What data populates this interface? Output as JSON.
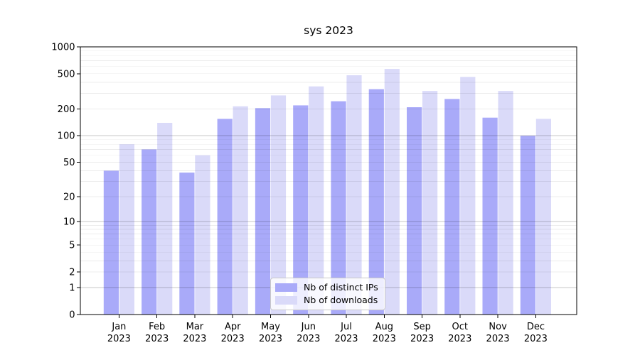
{
  "title": "sys 2023",
  "chart_data": {
    "type": "bar",
    "title": "sys 2023",
    "xlabel": "",
    "ylabel": "",
    "categories": [
      "Jan",
      "Feb",
      "Mar",
      "Apr",
      "May",
      "Jun",
      "Jul",
      "Aug",
      "Sep",
      "Oct",
      "Nov",
      "Dec"
    ],
    "year_label": "2023",
    "series": [
      {
        "name": "Nb of distinct IPs",
        "color": "#a9aaf9",
        "values": [
          40,
          70,
          38,
          155,
          205,
          220,
          245,
          335,
          210,
          260,
          160,
          100
        ]
      },
      {
        "name": "Nb of downloads",
        "color": "#dadaf9",
        "values": [
          80,
          140,
          60,
          215,
          285,
          360,
          480,
          565,
          320,
          460,
          320,
          155
        ]
      }
    ],
    "y_axis": {
      "scale": "log(1+v)",
      "range": [
        0,
        1000
      ],
      "ticks": [
        0,
        1,
        2,
        5,
        10,
        20,
        50,
        100,
        200,
        500,
        1000
      ],
      "major_gridlines": [
        1,
        10,
        100,
        1000
      ],
      "minor_gridlines_per_decade": [
        2,
        3,
        4,
        5,
        6,
        7,
        8,
        9
      ]
    },
    "legend": {
      "position": "inside-bottom-center",
      "labels": [
        "Nb of distinct IPs",
        "Nb of downloads"
      ]
    },
    "grid": "on",
    "colors": {
      "axis": "#000000",
      "background": "#ffffff"
    }
  }
}
